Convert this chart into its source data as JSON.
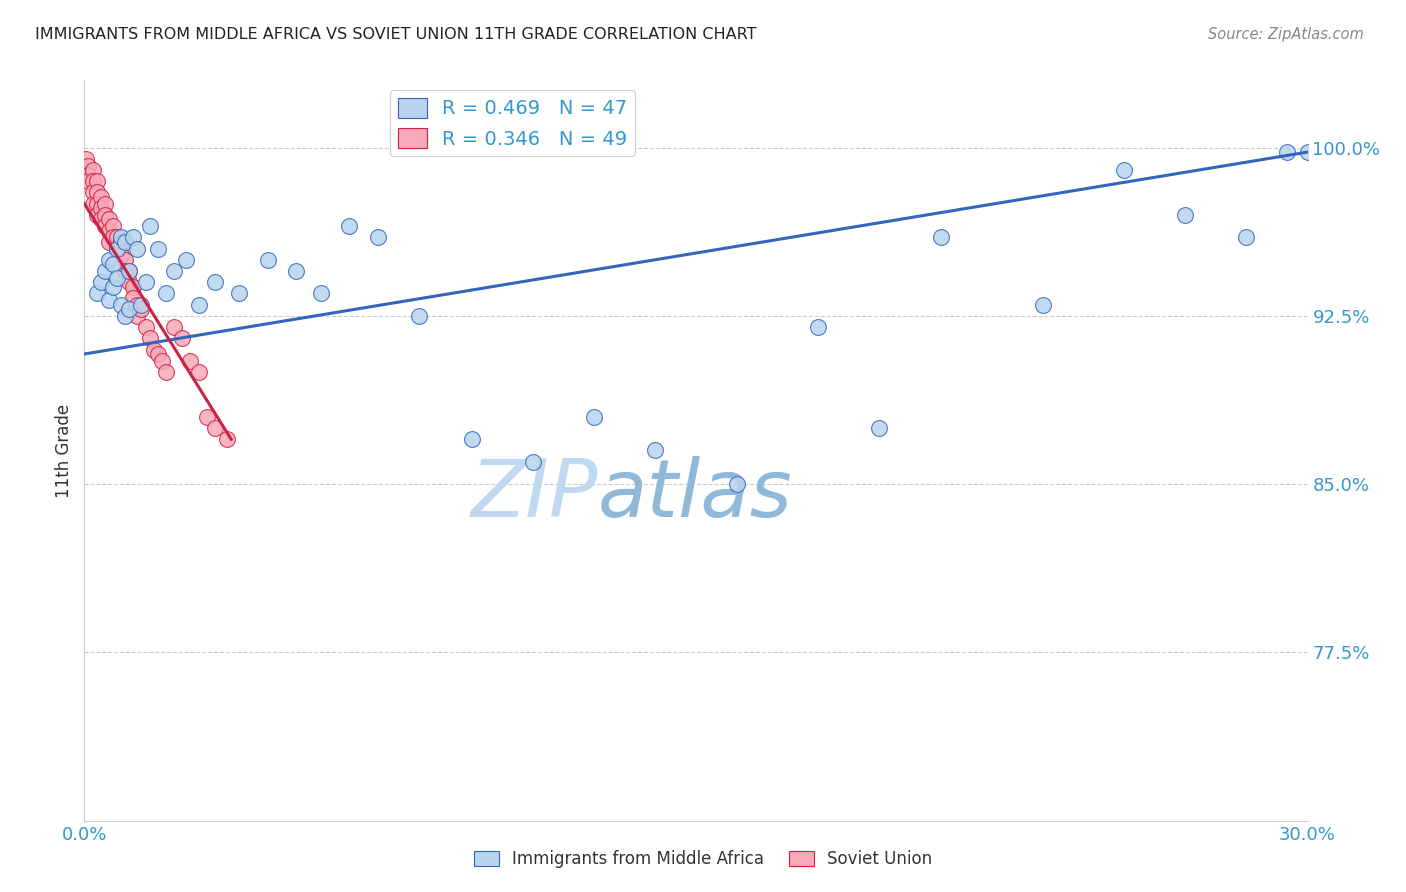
{
  "title": "IMMIGRANTS FROM MIDDLE AFRICA VS SOVIET UNION 11TH GRADE CORRELATION CHART",
  "source": "Source: ZipAtlas.com",
  "ylabel": "11th Grade",
  "ytick_labels": [
    "100.0%",
    "92.5%",
    "85.0%",
    "77.5%"
  ],
  "ytick_values": [
    1.0,
    0.925,
    0.85,
    0.775
  ],
  "xlim": [
    0.0,
    0.3
  ],
  "ylim": [
    0.7,
    1.03
  ],
  "legend_blue_r": "R = 0.469",
  "legend_blue_n": "N = 47",
  "legend_pink_r": "R = 0.346",
  "legend_pink_n": "N = 49",
  "blue_color": "#b8d4ee",
  "blue_line_color": "#3366bb",
  "pink_color": "#f8a8b8",
  "pink_line_color": "#cc2244",
  "watermark_zip_color": "#c0d8f0",
  "watermark_atlas_color": "#90b8d8",
  "grid_color": "#cccccc",
  "title_color": "#222222",
  "axis_label_color": "#3399cc",
  "blue_scatter_x": [
    0.003,
    0.004,
    0.005,
    0.006,
    0.006,
    0.007,
    0.007,
    0.008,
    0.008,
    0.009,
    0.009,
    0.01,
    0.01,
    0.011,
    0.011,
    0.012,
    0.013,
    0.014,
    0.015,
    0.016,
    0.018,
    0.02,
    0.022,
    0.025,
    0.028,
    0.032,
    0.038,
    0.045,
    0.052,
    0.058,
    0.065,
    0.072,
    0.082,
    0.095,
    0.11,
    0.125,
    0.14,
    0.16,
    0.18,
    0.195,
    0.21,
    0.235,
    0.255,
    0.27,
    0.285,
    0.295,
    0.3
  ],
  "blue_scatter_y": [
    0.935,
    0.94,
    0.945,
    0.932,
    0.95,
    0.948,
    0.938,
    0.942,
    0.955,
    0.93,
    0.96,
    0.925,
    0.958,
    0.928,
    0.945,
    0.96,
    0.955,
    0.93,
    0.94,
    0.965,
    0.955,
    0.935,
    0.945,
    0.95,
    0.93,
    0.94,
    0.935,
    0.95,
    0.945,
    0.935,
    0.965,
    0.96,
    0.925,
    0.87,
    0.86,
    0.88,
    0.865,
    0.85,
    0.92,
    0.875,
    0.96,
    0.93,
    0.99,
    0.97,
    0.96,
    0.998,
    0.998
  ],
  "pink_scatter_x": [
    0.0005,
    0.001,
    0.001,
    0.001,
    0.002,
    0.002,
    0.002,
    0.002,
    0.003,
    0.003,
    0.003,
    0.003,
    0.004,
    0.004,
    0.004,
    0.005,
    0.005,
    0.005,
    0.006,
    0.006,
    0.006,
    0.007,
    0.007,
    0.008,
    0.008,
    0.009,
    0.009,
    0.01,
    0.01,
    0.011,
    0.011,
    0.012,
    0.012,
    0.013,
    0.013,
    0.014,
    0.015,
    0.016,
    0.017,
    0.018,
    0.019,
    0.02,
    0.022,
    0.024,
    0.026,
    0.028,
    0.03,
    0.032,
    0.035
  ],
  "pink_scatter_y": [
    0.995,
    0.992,
    0.988,
    0.985,
    0.99,
    0.985,
    0.98,
    0.975,
    0.985,
    0.98,
    0.975,
    0.97,
    0.978,
    0.973,
    0.968,
    0.975,
    0.97,
    0.965,
    0.968,
    0.963,
    0.958,
    0.965,
    0.96,
    0.96,
    0.955,
    0.958,
    0.952,
    0.95,
    0.945,
    0.945,
    0.94,
    0.938,
    0.933,
    0.93,
    0.925,
    0.928,
    0.92,
    0.915,
    0.91,
    0.908,
    0.905,
    0.9,
    0.92,
    0.915,
    0.905,
    0.9,
    0.88,
    0.875,
    0.87
  ],
  "blue_line_x": [
    0.0,
    0.3
  ],
  "blue_line_y": [
    0.908,
    0.998
  ],
  "pink_line_x": [
    0.0,
    0.036
  ],
  "pink_line_y": [
    0.975,
    0.87
  ],
  "xtick_positions": [
    0.0,
    0.05,
    0.1,
    0.15,
    0.2,
    0.25,
    0.3
  ],
  "xtick_labels": [
    "0.0%",
    "",
    "",
    "",
    "",
    "",
    "30.0%"
  ]
}
